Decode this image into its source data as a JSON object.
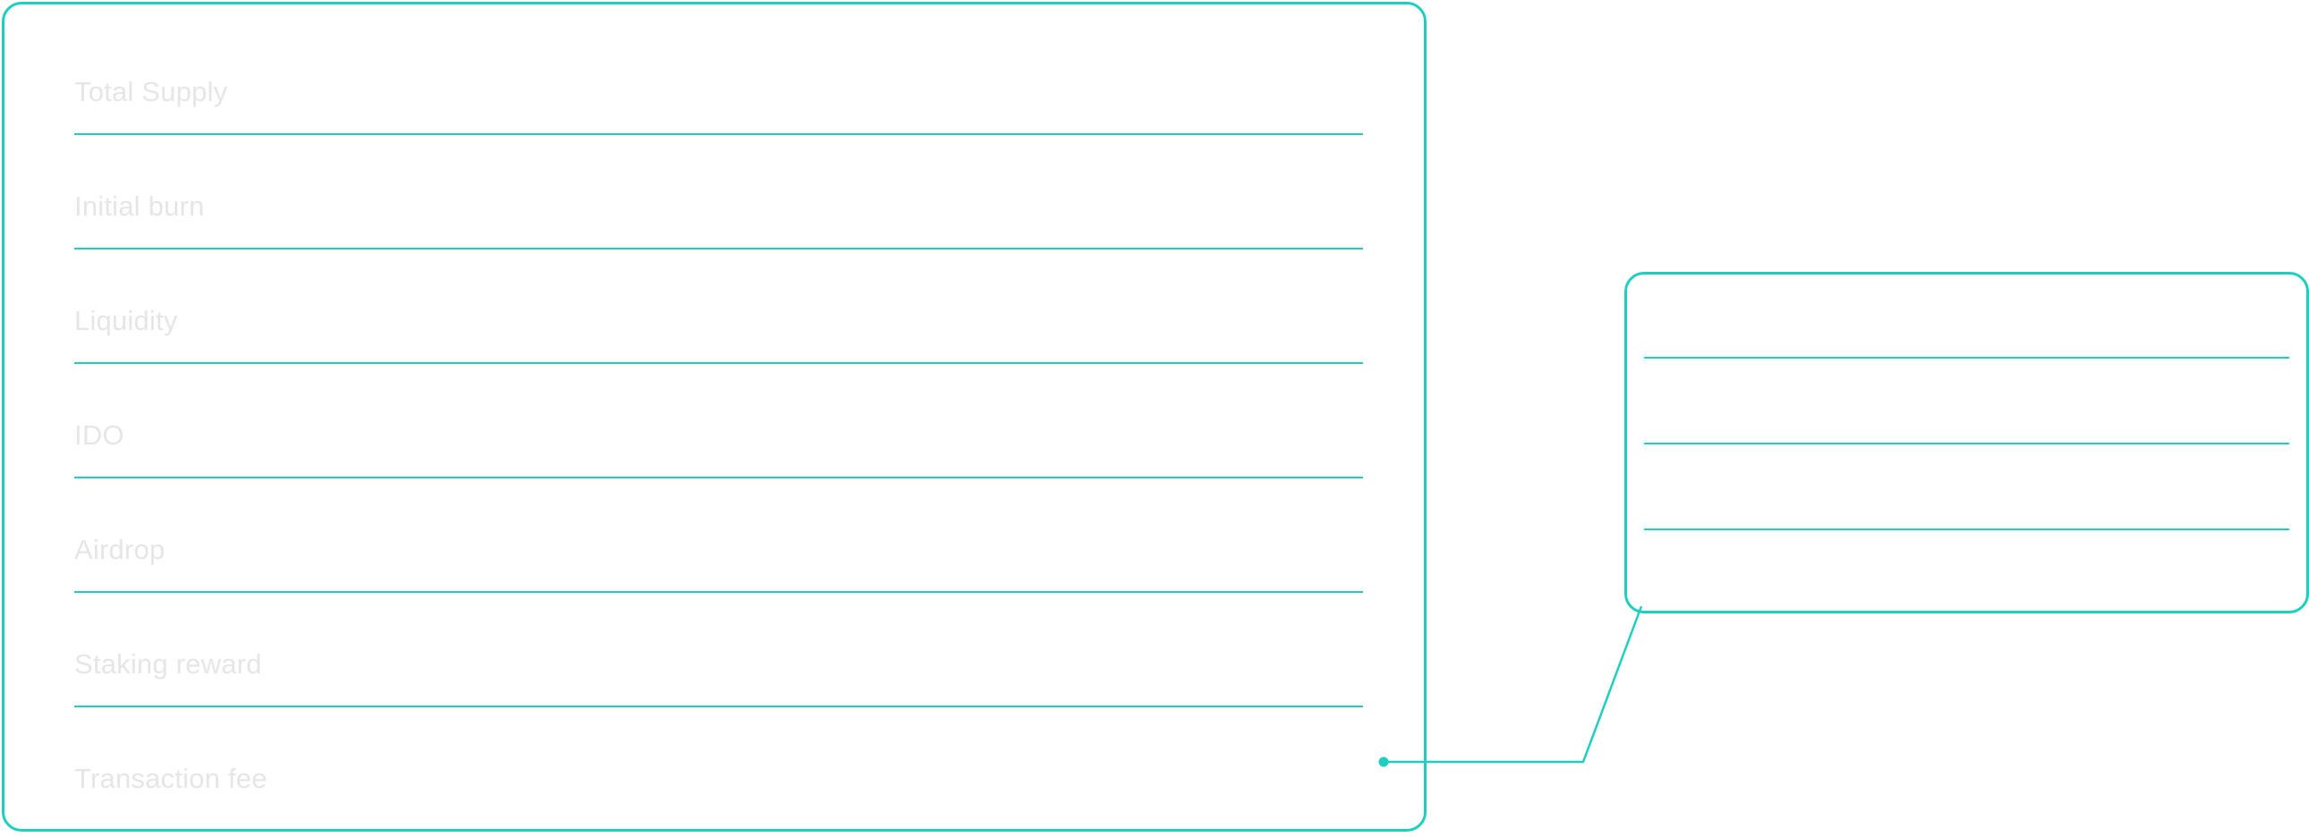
{
  "main_panel": {
    "rows": [
      {
        "label": "Total Supply"
      },
      {
        "label": "Initial burn"
      },
      {
        "label": "Liquidity"
      },
      {
        "label": "IDO"
      },
      {
        "label": "Airdrop"
      },
      {
        "label": "Staking reward"
      },
      {
        "label": "Transaction fee"
      }
    ]
  },
  "colors": {
    "accent": "#1ecfbf",
    "label_text": "#e6e6e6",
    "background": "#ffffff"
  }
}
